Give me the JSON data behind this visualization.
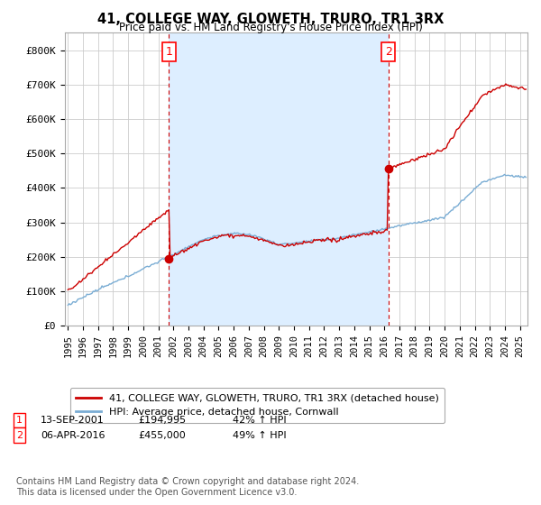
{
  "title": "41, COLLEGE WAY, GLOWETH, TRURO, TR1 3RX",
  "subtitle": "Price paid vs. HM Land Registry's House Price Index (HPI)",
  "ylim": [
    0,
    850000
  ],
  "xlim_start": 1994.8,
  "xlim_end": 2025.5,
  "yticks": [
    0,
    100000,
    200000,
    300000,
    400000,
    500000,
    600000,
    700000,
    800000
  ],
  "ytick_labels": [
    "£0",
    "£100K",
    "£200K",
    "£300K",
    "£400K",
    "£500K",
    "£600K",
    "£700K",
    "£800K"
  ],
  "xticks": [
    1995,
    1996,
    1997,
    1998,
    1999,
    2000,
    2001,
    2002,
    2003,
    2004,
    2005,
    2006,
    2007,
    2008,
    2009,
    2010,
    2011,
    2012,
    2013,
    2014,
    2015,
    2016,
    2017,
    2018,
    2019,
    2020,
    2021,
    2022,
    2023,
    2024,
    2025
  ],
  "marker1_x": 2001.71,
  "marker1_y": 194995,
  "marker1_label": "1",
  "marker1_date": "13-SEP-2001",
  "marker1_price": "£194,995",
  "marker1_hpi": "42% ↑ HPI",
  "marker2_x": 2016.27,
  "marker2_y": 455000,
  "marker2_label": "2",
  "marker2_date": "06-APR-2016",
  "marker2_price": "£455,000",
  "marker2_hpi": "49% ↑ HPI",
  "property_line_color": "#cc0000",
  "hpi_line_color": "#7aadd4",
  "shade_color": "#ddeeff",
  "vline_color": "#cc0000",
  "background_color": "#ffffff",
  "legend_label_property": "41, COLLEGE WAY, GLOWETH, TRURO, TR1 3RX (detached house)",
  "legend_label_hpi": "HPI: Average price, detached house, Cornwall",
  "footnote": "Contains HM Land Registry data © Crown copyright and database right 2024.\nThis data is licensed under the Open Government Licence v3.0."
}
